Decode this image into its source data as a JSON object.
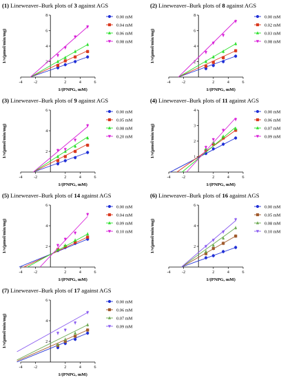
{
  "figure": {
    "panels": [
      {
        "num": "(1)",
        "title_pre": "Lineweaver–Burk plots of ",
        "compound": "3",
        "title_post": " against AGS"
      },
      {
        "num": "(2)",
        "title_pre": "Lineweaver–Burk plots of ",
        "compound": "8",
        "title_post": " against AGS"
      },
      {
        "num": "(3)",
        "title_pre": "Lineweaver–Burk plots of ",
        "compound": "9",
        "title_post": " against AGS"
      },
      {
        "num": "(4)",
        "title_pre": "Lineweaver–Burk plots of ",
        "compound": "11",
        "title_post": " against AGS"
      },
      {
        "num": "(5)",
        "title_pre": "Lineweaver–Burk plots of ",
        "compound": "14",
        "title_post": " against AGS"
      },
      {
        "num": "(6)",
        "title_pre": "Lineweaver–Burk plots of ",
        "compound": "16",
        "title_post": " against AGS"
      },
      {
        "num": "(7)",
        "title_pre": "Lineweaver–Burk plots of ",
        "compound": "17",
        "title_post": " against AGS"
      }
    ]
  },
  "series_colors": [
    "#1f2fd6",
    "#d9381e",
    "#2be02b",
    "#d81ed8"
  ],
  "series_colors_alt": [
    "#1f2fd6",
    "#a05a2c",
    "#6aa84f",
    "#8a5cf0"
  ],
  "chart_data": [
    {
      "type": "line",
      "title": "(1) Lineweaver–Burk plots of 3 against AGS",
      "xlabel": "1/(PNPG, mM)",
      "ylabel": "1/v(μmol/min/mg)",
      "xlim": [
        -4,
        6
      ],
      "ylim": [
        0,
        8
      ],
      "xticks": [
        -4,
        -2,
        2,
        4,
        6
      ],
      "yticks": [
        2,
        4,
        6,
        8
      ],
      "x": [
        1,
        2,
        3.33,
        5
      ],
      "legend": "right",
      "series": [
        {
          "name": "0.00 mM",
          "values": [
            1.2,
            1.6,
            2.0,
            2.6
          ],
          "fit": [
            [
              -2.7,
              0
            ],
            [
              5,
              2.6
            ]
          ]
        },
        {
          "name": "0.04 mM",
          "values": [
            1.5,
            2.1,
            2.6,
            3.3
          ],
          "fit": [
            [
              -2.7,
              0
            ],
            [
              5,
              3.4
            ]
          ]
        },
        {
          "name": "0.06 mM",
          "values": [
            2.0,
            2.5,
            3.3,
            4.2
          ],
          "fit": [
            [
              -2.7,
              0
            ],
            [
              5,
              4.2
            ]
          ]
        },
        {
          "name": "0.08 mM",
          "values": [
            2.8,
            3.8,
            5.2,
            6.5
          ],
          "fit": [
            [
              -2.7,
              0
            ],
            [
              5,
              6.5
            ]
          ]
        }
      ]
    },
    {
      "type": "line",
      "title": "(2) Lineweaver–Burk plots of 8 against AGS",
      "xlabel": "1/(PNPG, mM)",
      "ylabel": "1/v(μmol/min/mg)",
      "xlim": [
        -4,
        6
      ],
      "ylim": [
        0,
        8
      ],
      "xticks": [
        -4,
        -2,
        2,
        4,
        6
      ],
      "yticks": [
        2,
        4,
        6,
        8
      ],
      "x": [
        1,
        2,
        3.33,
        5
      ],
      "legend": "right",
      "series": [
        {
          "name": "0.00 mM",
          "values": [
            1.1,
            1.5,
            2.0,
            2.7
          ],
          "fit": [
            [
              -2.7,
              0
            ],
            [
              5,
              2.7
            ]
          ]
        },
        {
          "name": "0.02 mM",
          "values": [
            1.4,
            1.9,
            2.5,
            3.4
          ],
          "fit": [
            [
              -2.7,
              0
            ],
            [
              5,
              3.4
            ]
          ]
        },
        {
          "name": "0.03 mM",
          "values": [
            2.0,
            2.6,
            3.3,
            4.3
          ],
          "fit": [
            [
              -2.7,
              0
            ],
            [
              5,
              4.3
            ]
          ]
        },
        {
          "name": "0.08 mM",
          "values": [
            3.2,
            4.4,
            5.4,
            7.2
          ],
          "fit": [
            [
              -2.7,
              0
            ],
            [
              5,
              7.3
            ]
          ]
        }
      ]
    },
    {
      "type": "line",
      "title": "(3) Lineweaver–Burk plots of 9 against AGS",
      "xlabel": "1/(PNPG, mM)",
      "ylabel": "1/v(μmol/min/mg)",
      "xlim": [
        -4,
        6
      ],
      "ylim": [
        0,
        6
      ],
      "xticks": [
        -4,
        -2,
        2,
        4,
        6
      ],
      "yticks": [
        2,
        4,
        6
      ],
      "x": [
        1,
        2,
        3.33,
        5
      ],
      "legend": "right",
      "series": [
        {
          "name": "0.00 mM",
          "values": [
            0.8,
            1.1,
            1.4,
            1.9
          ],
          "fit": [
            [
              -2.3,
              0
            ],
            [
              5,
              1.9
            ]
          ]
        },
        {
          "name": "0.05 mM",
          "values": [
            1.1,
            1.5,
            2.0,
            2.6
          ],
          "fit": [
            [
              -2.3,
              0
            ],
            [
              5,
              2.7
            ]
          ]
        },
        {
          "name": "0.08 mM",
          "values": [
            1.5,
            2.0,
            2.5,
            3.3
          ],
          "fit": [
            [
              -2.3,
              0
            ],
            [
              5,
              3.4
            ]
          ]
        },
        {
          "name": "0.20 mM",
          "values": [
            2.1,
            2.2,
            3.1,
            4.5
          ],
          "fit": [
            [
              -2.3,
              0
            ],
            [
              5,
              4.4
            ]
          ]
        }
      ]
    },
    {
      "type": "line",
      "title": "(4) Lineweaver–Burk plots of 11 against AGS",
      "xlabel": "1/(PNPG, mM)",
      "ylabel": "1/v(μmol/min/mg)",
      "xlim": [
        -4,
        6
      ],
      "ylim": [
        0,
        4
      ],
      "xticks": [
        -4,
        -2,
        2,
        4,
        6
      ],
      "yticks": [
        1,
        2,
        3,
        4
      ],
      "x": [
        1,
        2,
        3.33,
        5
      ],
      "legend": "right",
      "series": [
        {
          "name": "0.00 mM",
          "values": [
            1.2,
            1.5,
            1.8,
            2.2
          ],
          "fit": [
            [
              -3.8,
              0
            ],
            [
              5,
              2.2
            ]
          ]
        },
        {
          "name": "0.06 mM",
          "values": [
            1.4,
            1.8,
            2.2,
            2.7
          ],
          "fit": [
            [
              -2.9,
              0
            ],
            [
              5,
              2.7
            ]
          ]
        },
        {
          "name": "0.07 mM",
          "values": [
            1.5,
            1.9,
            2.3,
            2.8
          ],
          "fit": [
            [
              -2.2,
              0
            ],
            [
              5,
              2.9
            ]
          ]
        },
        {
          "name": "0.09 mM",
          "values": [
            1.6,
            2.1,
            2.7,
            3.4
          ],
          "fit": [
            [
              -1.6,
              0
            ],
            [
              5,
              3.5
            ]
          ]
        }
      ]
    },
    {
      "type": "line",
      "title": "(5) Lineweaver–Burk plots of 14 against AGS",
      "xlabel": "1/(PNPG, mM)",
      "ylabel": "1/v(μmol/min/mg)",
      "xlim": [
        -4,
        6
      ],
      "ylim": [
        0,
        6
      ],
      "xticks": [
        -4,
        -2,
        2,
        4,
        6
      ],
      "yticks": [
        2,
        4,
        6
      ],
      "x": [
        1,
        2,
        3.33,
        5
      ],
      "legend": "right",
      "series": [
        {
          "name": "0.00 mM",
          "values": [
            1.6,
            1.9,
            2.3,
            2.7
          ],
          "fit": [
            [
              -4.2,
              0
            ],
            [
              5,
              2.7
            ]
          ]
        },
        {
          "name": "0.04 mM",
          "values": [
            1.7,
            2.0,
            2.4,
            2.9
          ],
          "fit": [
            [
              -3.6,
              0
            ],
            [
              5,
              2.9
            ]
          ]
        },
        {
          "name": "0.09 mM",
          "values": [
            1.7,
            2.1,
            2.6,
            3.2
          ],
          "fit": [
            [
              -3.1,
              0
            ],
            [
              5,
              3.2
            ]
          ]
        },
        {
          "name": "0.10 mM",
          "values": [
            2.1,
            2.7,
            3.3,
            5.1
          ],
          "fit": [
            [
              -1.4,
              0
            ],
            [
              5,
              4.9
            ]
          ]
        }
      ]
    },
    {
      "type": "line",
      "title": "(6) Lineweaver–Burk plots of 16 against AGS",
      "xlabel": "1/(PNPG, mM)",
      "ylabel": "1/v(μmol/min/mg)",
      "xlim": [
        -4,
        6
      ],
      "ylim": [
        0,
        6
      ],
      "xticks": [
        -4,
        -2,
        2,
        4,
        6
      ],
      "yticks": [
        2,
        4,
        6
      ],
      "x": [
        1,
        2,
        3.33,
        5
      ],
      "legend": "right",
      "series": [
        {
          "name": "0.00 mM",
          "values": [
            0.9,
            1.1,
            1.5,
            1.9
          ],
          "fit": [
            [
              -2.3,
              0
            ],
            [
              5,
              1.9
            ]
          ]
        },
        {
          "name": "0.05 mM",
          "values": [
            1.3,
            1.8,
            2.3,
            3.0
          ],
          "fit": [
            [
              -2.3,
              0
            ],
            [
              5,
              3.0
            ]
          ]
        },
        {
          "name": "0.08 mM",
          "values": [
            1.5,
            2.1,
            2.8,
            3.8
          ],
          "fit": [
            [
              -2.3,
              0
            ],
            [
              5,
              3.8
            ]
          ]
        },
        {
          "name": "0.10 mM",
          "values": [
            2.0,
            2.6,
            3.4,
            4.6
          ],
          "fit": [
            [
              -2.3,
              0
            ],
            [
              5,
              4.5
            ]
          ]
        }
      ]
    },
    {
      "type": "line",
      "title": "(7) Lineweaver–Burk plots of 17 against AGS",
      "xlabel": "1/(PNPG, mM)",
      "ylabel": "1/v(μmol/min/mg)",
      "xlim": [
        -4,
        6
      ],
      "ylim": [
        0,
        6
      ],
      "xticks": [
        -4,
        -2,
        2,
        4,
        6
      ],
      "yticks": [
        2,
        4,
        6
      ],
      "x": [
        1,
        2,
        3.33,
        5
      ],
      "legend": "right",
      "series": [
        {
          "name": "0.00 mM",
          "values": [
            1.4,
            1.8,
            2.2,
            2.8
          ],
          "fit": [
            [
              -4.5,
              0
            ],
            [
              5,
              2.8
            ]
          ]
        },
        {
          "name": "0.06 mM",
          "values": [
            1.6,
            2.0,
            2.5,
            3.1
          ],
          "fit": [
            [
              -4.5,
              0.1
            ],
            [
              5,
              3.1
            ]
          ]
        },
        {
          "name": "0.07 mM",
          "values": [
            1.7,
            2.2,
            2.8,
            3.6
          ],
          "fit": [
            [
              -4.5,
              0.2
            ],
            [
              5,
              3.6
            ]
          ]
        },
        {
          "name": "0.09 mM",
          "values": [
            2.8,
            3.1,
            3.8,
            4.8
          ],
          "fit": [
            [
              -4.5,
              1.0
            ],
            [
              5,
              4.8
            ]
          ]
        }
      ]
    }
  ]
}
